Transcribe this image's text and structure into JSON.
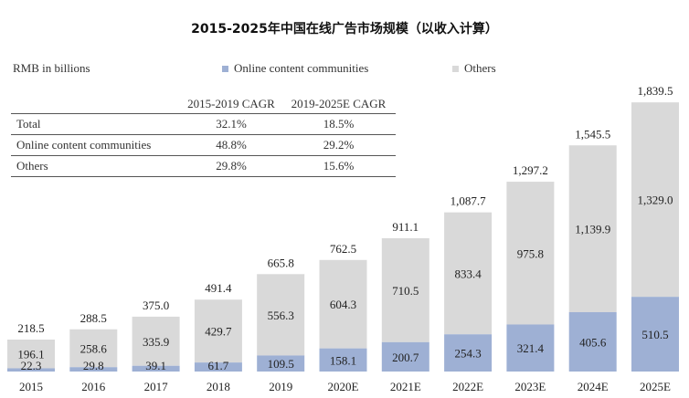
{
  "chart_data": {
    "type": "bar",
    "stacked": true,
    "title": "2015-2025年中国在线广告市场规模（以收入计算）",
    "unit_label": "RMB in billions",
    "categories": [
      "2015",
      "2016",
      "2017",
      "2018",
      "2019",
      "2020E",
      "2021E",
      "2022E",
      "2023E",
      "2024E",
      "2025E"
    ],
    "series": [
      {
        "name": "Online content communities",
        "color": "#9eb0d4",
        "values": [
          22.3,
          29.8,
          39.1,
          61.7,
          109.5,
          158.1,
          200.7,
          254.3,
          321.4,
          405.6,
          510.5
        ],
        "labels": [
          "22.3",
          "29.8",
          "39.1",
          "61.7",
          "109.5",
          "158.1",
          "200.7",
          "254.3",
          "321.4",
          "405.6",
          "510.5"
        ]
      },
      {
        "name": "Others",
        "color": "#d9d9d9",
        "values": [
          196.1,
          258.6,
          335.9,
          429.7,
          556.3,
          604.3,
          710.5,
          833.4,
          975.8,
          1139.9,
          1329.0
        ],
        "labels": [
          "196.1",
          "258.6",
          "335.9",
          "429.7",
          "556.3",
          "604.3",
          "710.5",
          "833.4",
          "975.8",
          "1,139.9",
          "1,329.0"
        ]
      }
    ],
    "totals": [
      218.5,
      288.5,
      375.0,
      491.4,
      665.8,
      762.5,
      911.1,
      1087.7,
      1297.2,
      1545.5,
      1839.5
    ],
    "total_labels": [
      "218.5",
      "288.5",
      "375.0",
      "491.4",
      "665.8",
      "762.5",
      "911.1",
      "1,087.7",
      "1,297.2",
      "1,545.5",
      "1,839.5"
    ],
    "legend_position": "top-right",
    "grid": false,
    "cagr_table": {
      "headers": [
        "",
        "2015-2019 CAGR",
        "2019-2025E CAGR"
      ],
      "rows": [
        {
          "label": "Total",
          "cagr_2015_2019": "32.1%",
          "cagr_2019_2025": "18.5%"
        },
        {
          "label": "Online content communities",
          "cagr_2015_2019": "48.8%",
          "cagr_2019_2025": "29.2%"
        },
        {
          "label": "Others",
          "cagr_2015_2019": "29.8%",
          "cagr_2019_2025": "15.6%"
        }
      ]
    }
  }
}
